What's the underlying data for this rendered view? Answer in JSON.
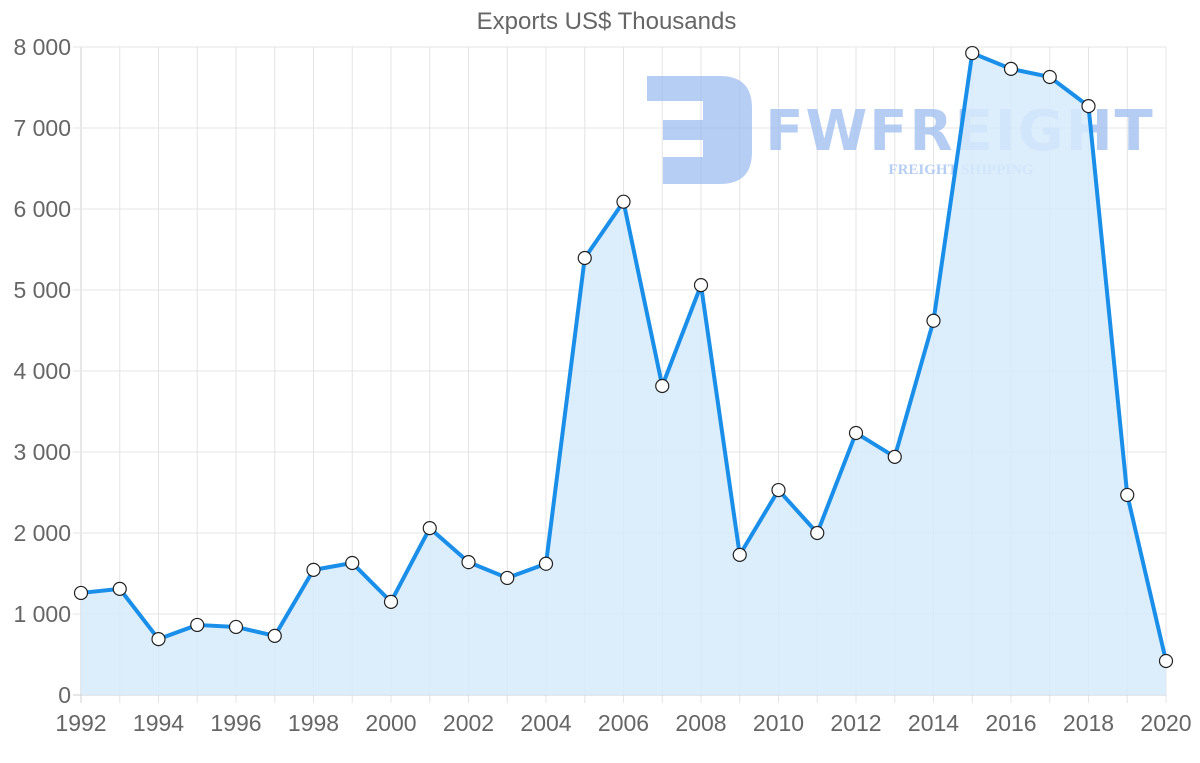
{
  "chart_data": {
    "type": "area",
    "title": "Exports US$ Thousands",
    "xlabel": "",
    "ylabel": "",
    "x": [
      1992,
      1993,
      1994,
      1995,
      1996,
      1997,
      1998,
      1999,
      2000,
      2001,
      2002,
      2003,
      2004,
      2005,
      2006,
      2007,
      2008,
      2009,
      2010,
      2011,
      2012,
      2013,
      2014,
      2015,
      2016,
      2017,
      2018,
      2019,
      2020
    ],
    "series": [
      {
        "name": "Exports US$ Thousands",
        "values": [
          1260,
          1310,
          690,
          865,
          840,
          730,
          1545,
          1630,
          1150,
          2060,
          1640,
          1445,
          1620,
          5395,
          6090,
          3815,
          5060,
          1730,
          2530,
          2000,
          3235,
          2940,
          4620,
          7925,
          7730,
          7630,
          7270,
          2470,
          420
        ]
      }
    ],
    "x_ticks": [
      "1992",
      "1994",
      "1996",
      "1998",
      "2000",
      "2002",
      "2004",
      "2006",
      "2008",
      "2010",
      "2012",
      "2014",
      "2016",
      "2018",
      "2020"
    ],
    "y_ticks": [
      "0",
      "1 000",
      "2 000",
      "3 000",
      "4 000",
      "5 000",
      "6 000",
      "7 000",
      "8 000"
    ],
    "ylim": [
      0,
      8000
    ],
    "xlim": [
      1992,
      2020
    ],
    "grid": true,
    "legend": "none",
    "colors": {
      "line": "#1a8fea",
      "fill": "#d6eafb",
      "point_fill": "#ffffff",
      "point_stroke": "#222222",
      "grid": "#e0e0e0",
      "tick_text": "#666666"
    }
  },
  "watermark": {
    "brand": "FWFREIGHT",
    "tagline": "FREIGHT SHIPPING",
    "color": "#9dbdf0"
  }
}
